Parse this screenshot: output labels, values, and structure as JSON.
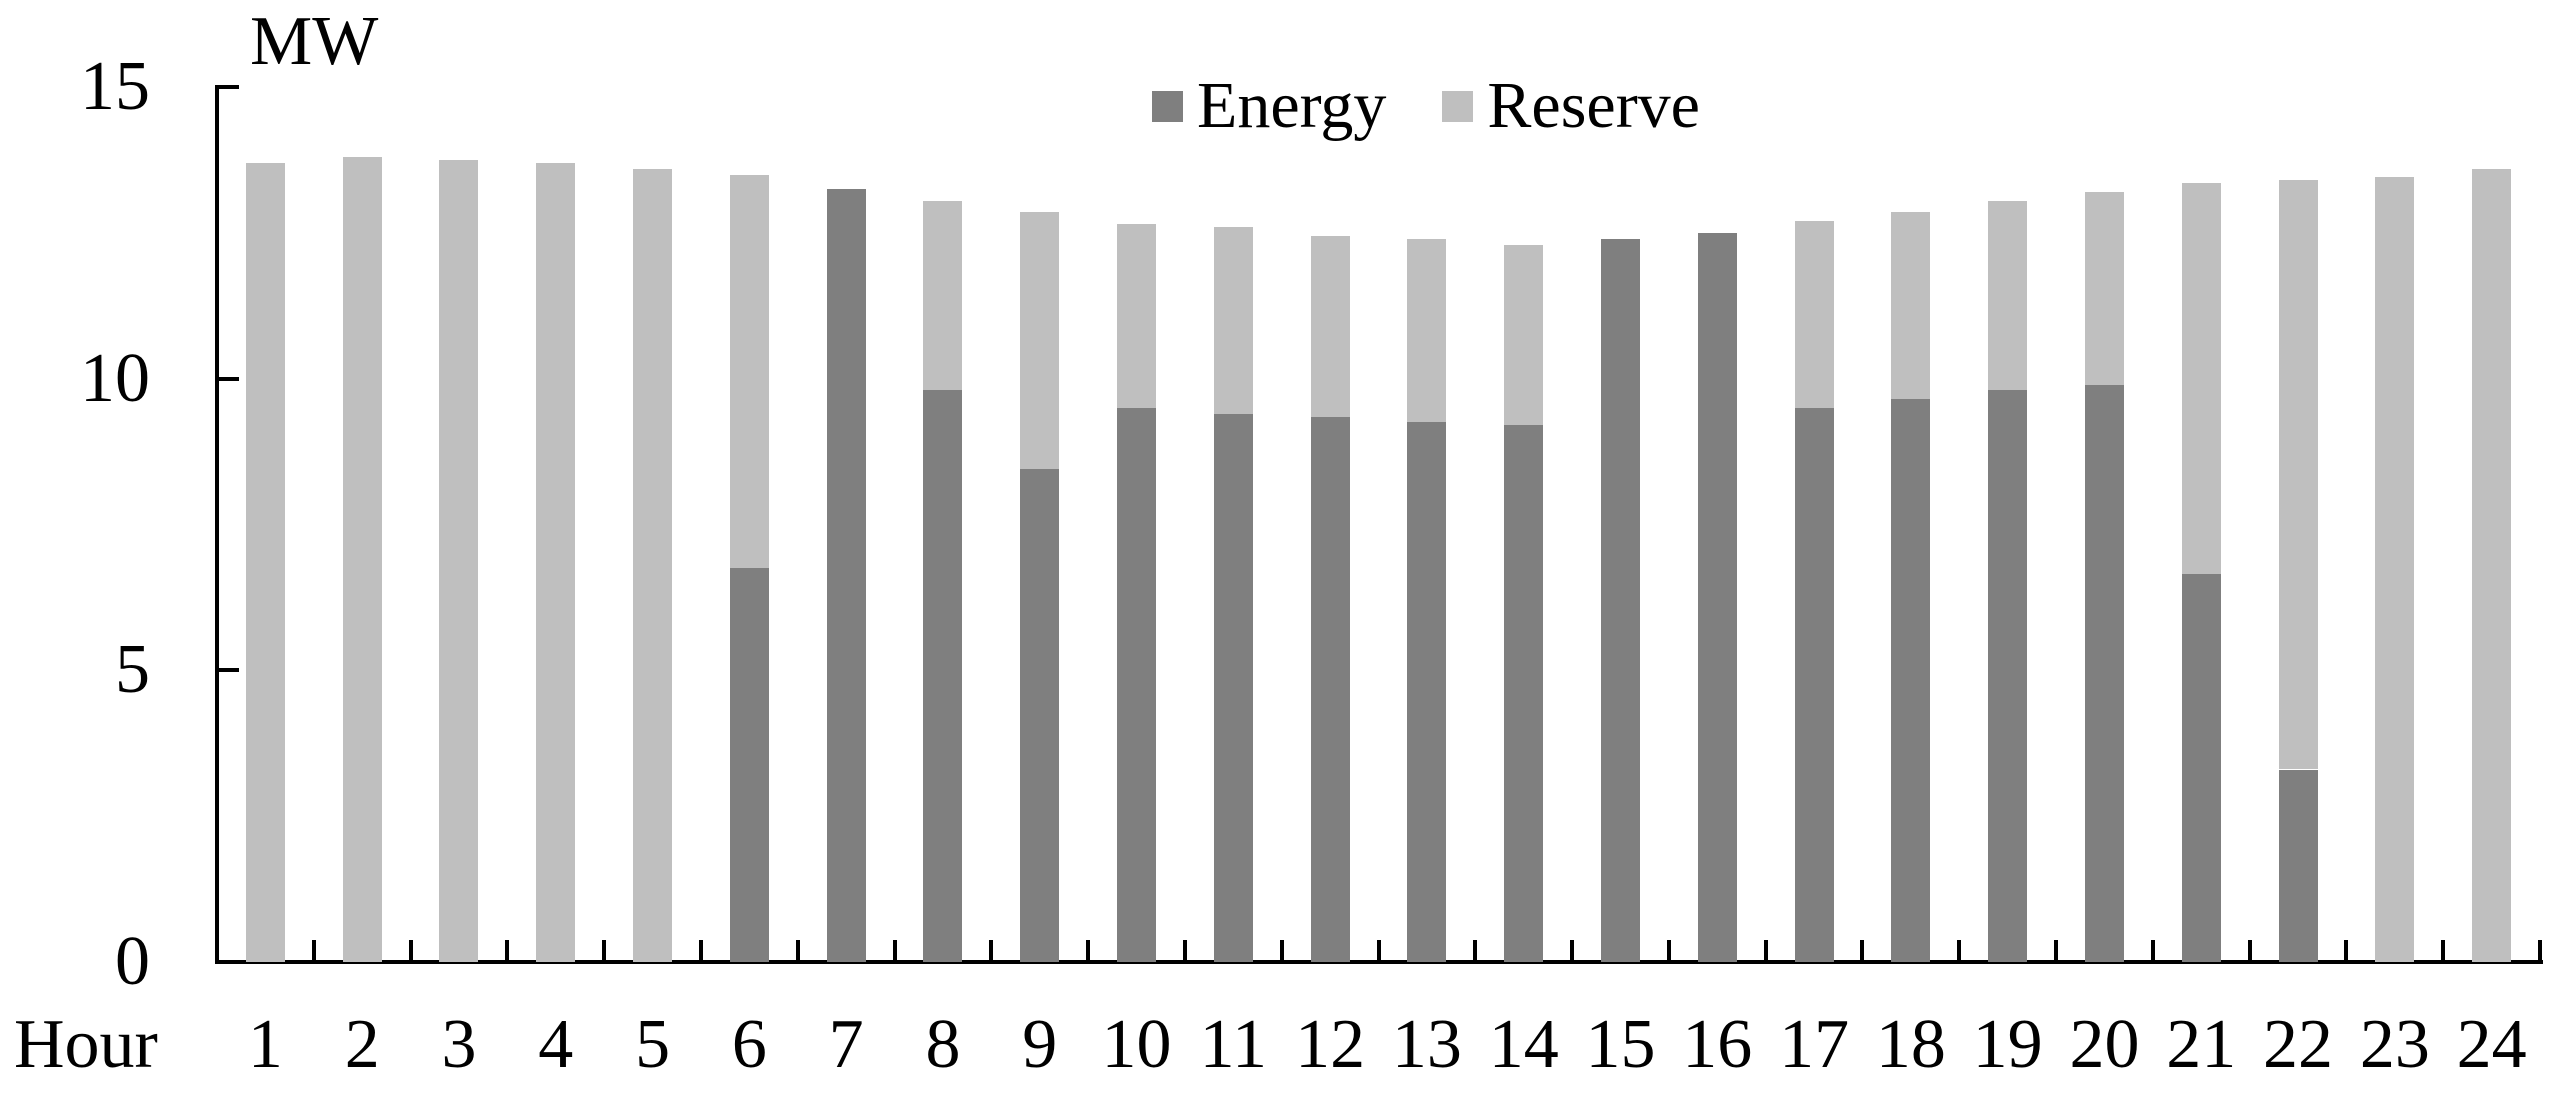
{
  "chart_data": {
    "type": "bar",
    "stacked": true,
    "title": "",
    "ylabel": "MW",
    "xlabel": "Hour",
    "categories": [
      1,
      2,
      3,
      4,
      5,
      6,
      7,
      8,
      9,
      10,
      11,
      12,
      13,
      14,
      15,
      16,
      17,
      18,
      19,
      20,
      21,
      22,
      23,
      24
    ],
    "series": [
      {
        "name": "Energy",
        "color": "#7F7F7F",
        "values": [
          0,
          0,
          0,
          0,
          0,
          6.75,
          13.25,
          9.8,
          8.45,
          9.5,
          9.4,
          9.35,
          9.25,
          9.2,
          12.4,
          12.5,
          9.5,
          9.65,
          9.8,
          9.9,
          6.65,
          3.3,
          0,
          0
        ]
      },
      {
        "name": "Reserve",
        "color": "#BFBFBF",
        "values": [
          13.7,
          13.8,
          13.75,
          13.7,
          13.6,
          6.75,
          0,
          3.25,
          4.4,
          3.15,
          3.2,
          3.1,
          3.15,
          3.1,
          0,
          0,
          3.2,
          3.2,
          3.25,
          3.3,
          6.7,
          10.1,
          13.45,
          13.6
        ]
      }
    ],
    "ylim": [
      0,
      15
    ],
    "y_ticks": [
      0,
      5,
      10,
      15
    ],
    "grid": false,
    "legend_position": "top-center",
    "axis_color": "#000000"
  }
}
